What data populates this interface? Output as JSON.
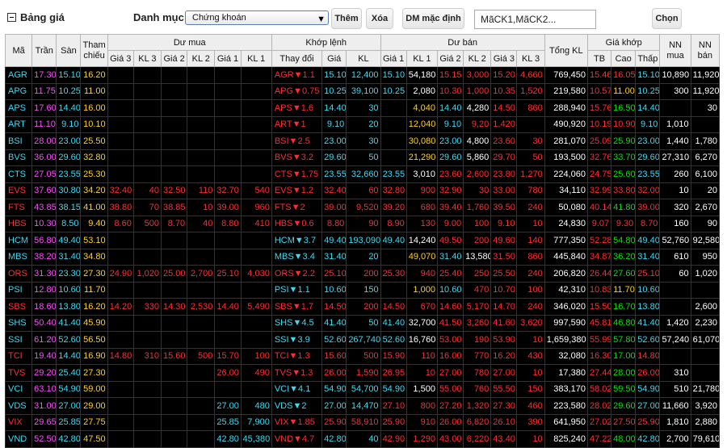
{
  "header": {
    "title": "Bảng giá",
    "category_label": "Danh mục",
    "category_value": "Chứng khoán",
    "add_label": "Thêm",
    "delete_label": "Xóa",
    "default_list_label": "DM mặc định",
    "codes_value": "MãCK1,MãCK2...",
    "choose_label": "Chọn"
  },
  "columns": {
    "code": "Mã",
    "ceiling": "Trần",
    "floor": "Sàn",
    "reference": "Tham chiếu",
    "buy_group": "Dư mua",
    "match_group": "Khớp lệnh",
    "sell_group": "Dư bán",
    "total_vol": "Tổng KL",
    "match_price_group": "Giá khớp",
    "foreign_buy": "NN mua",
    "foreign_sell": "NN bán",
    "price3": "Giá 3",
    "vol3": "KL 3",
    "price2": "Giá 2",
    "vol2": "KL 2",
    "price1": "Giá 1",
    "vol1": "KL 1",
    "change": "Thay đổi",
    "price": "Giá",
    "vol": "KL",
    "avg": "TB",
    "high": "Cao",
    "low": "Thấp"
  },
  "colors": {
    "up": "#00e600",
    "down": "#ff2d2d",
    "reference": "#ffd21f",
    "ceiling": "#ff4dff",
    "floor": "#3fd9f2",
    "neutral": "#ffffff",
    "background": "#000000"
  },
  "rows": [
    [
      "AGR",
      "17.30",
      "15.10",
      "16.20",
      "",
      "",
      "",
      "",
      "",
      "",
      "AGR▼1.1",
      "15.10",
      "12,400",
      "15.10",
      "54,180",
      "15.15",
      "3,000",
      "15.20",
      "4,660",
      "769,450",
      "15.46",
      "16.05",
      "15.10",
      "10,890",
      "11,920"
    ],
    [
      "APG",
      "11.75",
      "10.25",
      "11.00",
      "",
      "",
      "",
      "",
      "",
      "",
      "APG▼0.75",
      "10.25",
      "39,100",
      "10.25",
      "2,080",
      "10.30",
      "1,000",
      "10.35",
      "1,520",
      "219,580",
      "10.57",
      "11.00",
      "10.25",
      "300",
      "11,920"
    ],
    [
      "APS",
      "17.60",
      "14.40",
      "16.00",
      "",
      "",
      "",
      "",
      "",
      "",
      "APS▼1.6",
      "14.40",
      "30",
      "",
      "4,040",
      "14.40",
      "4,280",
      "14.50",
      "860",
      "288,940",
      "15.76",
      "16.50",
      "14.40",
      "",
      "30"
    ],
    [
      "ART",
      "11.10",
      "9.10",
      "10.10",
      "",
      "",
      "",
      "",
      "",
      "",
      "ART▼1",
      "9.10",
      "20",
      "",
      "12,040",
      "9.10",
      "9,20",
      "1,420",
      "",
      "490,920",
      "10.19",
      "10.90",
      "9.10",
      "1,010",
      ""
    ],
    [
      "BSI",
      "28.00",
      "23.00",
      "25.50",
      "",
      "",
      "",
      "",
      "",
      "",
      "BSI▼2.5",
      "23.00",
      "30",
      "",
      "30,080",
      "23.00",
      "4,800",
      "23.60",
      "30",
      "281,070",
      "25.09",
      "25.90",
      "23.00",
      "1,440",
      "1,780"
    ],
    [
      "BVS",
      "36.00",
      "29.60",
      "32.80",
      "",
      "",
      "",
      "",
      "",
      "",
      "BVS▼3.2",
      "29.60",
      "50",
      "",
      "21,290",
      "29.60",
      "5,860",
      "29.70",
      "50",
      "193,500",
      "32.76",
      "33.70",
      "29.60",
      "27,310",
      "6,270"
    ],
    [
      "CTS",
      "27.05",
      "23.55",
      "25.30",
      "",
      "",
      "",
      "",
      "",
      "",
      "CTS▼1.75",
      "23.55",
      "32,660",
      "23.55",
      "3,010",
      "23.60",
      "2,600",
      "23.80",
      "1,270",
      "224,060",
      "24.75",
      "25.60",
      "23.55",
      "260",
      "6,100"
    ],
    [
      "EVS",
      "37.60",
      "30.80",
      "34.20",
      "32.40",
      "40",
      "32.50",
      "110",
      "32.70",
      "540",
      "EVS▼1.2",
      "32.40",
      "60",
      "32.80",
      "900",
      "32.90",
      "30",
      "33.00",
      "780",
      "34,110",
      "32.99",
      "33.80",
      "32.00",
      "10",
      "20"
    ],
    [
      "FTS",
      "43.85",
      "38.15",
      "41.00",
      "38.80",
      "70",
      "38.85",
      "10",
      "39.00",
      "960",
      "FTS▼2",
      "39.00",
      "9,520",
      "39.20",
      "680",
      "39.40",
      "1,760",
      "39.50",
      "240",
      "50,080",
      "40.14",
      "41.80",
      "39.00",
      "320",
      "2,670"
    ],
    [
      "HBS",
      "10.30",
      "8.50",
      "9.40",
      "8.60",
      "500",
      "8.70",
      "40",
      "8.80",
      "410",
      "HBS▼0.6",
      "8.80",
      "90",
      "8.90",
      "130",
      "9.00",
      "100",
      "9.10",
      "10",
      "24,830",
      "9.07",
      "9.30",
      "8.70",
      "160",
      "90"
    ],
    [
      "HCM",
      "56.80",
      "49.40",
      "53.10",
      "",
      "",
      "",
      "",
      "",
      "",
      "HCM▼3.7",
      "49.40",
      "193,090",
      "49.40",
      "14,240",
      "49.50",
      "200",
      "49.60",
      "140",
      "777,350",
      "52.28",
      "54.80",
      "49.40",
      "52,760",
      "92,580"
    ],
    [
      "MBS",
      "38.20",
      "31.40",
      "34.80",
      "",
      "",
      "",
      "",
      "",
      "",
      "MBS▼3.4",
      "31.40",
      "20",
      "",
      "49,070",
      "31.40",
      "13,580",
      "31.50",
      "860",
      "445,840",
      "34.87",
      "36.20",
      "31.40",
      "610",
      "950"
    ],
    [
      "ORS",
      "31.30",
      "23.30",
      "27.30",
      "24.90",
      "1,020",
      "25.00",
      "2,700",
      "25.10",
      "4,030",
      "ORS▼2.2",
      "25.10",
      "200",
      "25.30",
      "940",
      "25.40",
      "250",
      "25.50",
      "240",
      "206,820",
      "26.44",
      "27.60",
      "25.10",
      "60",
      "1,020"
    ],
    [
      "PSI",
      "12.80",
      "10.60",
      "11.70",
      "",
      "",
      "",
      "",
      "",
      "",
      "PSI▼1.1",
      "10.60",
      "150",
      "",
      "1,000",
      "10.60",
      "470",
      "10.70",
      "100",
      "42,310",
      "10.83",
      "11.70",
      "10.60",
      "",
      ""
    ],
    [
      "SBS",
      "18.60",
      "13.80",
      "16.20",
      "14.20",
      "330",
      "14.30",
      "2,530",
      "14.40",
      "5,490",
      "SBS▼1.7",
      "14.50",
      "200",
      "14.50",
      "670",
      "14.60",
      "5,170",
      "14.70",
      "240",
      "346,020",
      "15.50",
      "16.70",
      "13.80",
      "",
      "2,600"
    ],
    [
      "SHS",
      "50.40",
      "41.40",
      "45.90",
      "",
      "",
      "",
      "",
      "",
      "",
      "SHS▼4.5",
      "41.40",
      "50",
      "41.40",
      "32,700",
      "41.50",
      "3,260",
      "41.60",
      "3,620",
      "997,590",
      "45.81",
      "46.80",
      "41.40",
      "1,420",
      "2,230"
    ],
    [
      "SSI",
      "61.20",
      "52.60",
      "56.50",
      "",
      "",
      "",
      "",
      "",
      "",
      "SSI▼3.9",
      "52.60",
      "267,740",
      "52.60",
      "16,760",
      "53.00",
      "190",
      "53.90",
      "10",
      "1,659,380",
      "55.99",
      "57.80",
      "52.60",
      "57,240",
      "61,070"
    ],
    [
      "TCI",
      "19.40",
      "14.40",
      "16.90",
      "14.80",
      "310",
      "15.60",
      "500",
      "15.70",
      "100",
      "TCI▼1.3",
      "15.60",
      "500",
      "15.90",
      "110",
      "16.00",
      "770",
      "16.20",
      "430",
      "32,080",
      "16.30",
      "17.00",
      "14.80",
      "",
      ""
    ],
    [
      "TVS",
      "29.20",
      "25.40",
      "27.30",
      "",
      "",
      "",
      "",
      "26.00",
      "490",
      "TVS▼1.3",
      "26.00",
      "1,590",
      "26.95",
      "10",
      "27.00",
      "780",
      "27.00",
      "10",
      "17,380",
      "27.44",
      "28.00",
      "26.00",
      "310",
      ""
    ],
    [
      "VCI",
      "63.10",
      "54.90",
      "59.00",
      "",
      "",
      "",
      "",
      "",
      "",
      "VCI▼4.1",
      "54.90",
      "54,700",
      "54.90",
      "1,500",
      "55.00",
      "760",
      "55.50",
      "150",
      "383,170",
      "58.02",
      "59.50",
      "54.90",
      "510",
      "21,780"
    ],
    [
      "VDS",
      "31.00",
      "27.00",
      "29.00",
      "",
      "",
      "",
      "",
      "27.00",
      "480",
      "VDS▼2",
      "27.00",
      "14,470",
      "27.10",
      "800",
      "27.20",
      "1,320",
      "27.30",
      "460",
      "223,580",
      "28.02",
      "29.60",
      "27.00",
      "11,660",
      "3,920"
    ],
    [
      "VIX",
      "29.65",
      "25.85",
      "27.75",
      "",
      "",
      "",
      "",
      "25.85",
      "7,900",
      "VIX▼1.85",
      "25.90",
      "58,910",
      "25.90",
      "910",
      "26.00",
      "6,820",
      "26.10",
      "390",
      "641,950",
      "27.02",
      "27.50",
      "25.90",
      "1,810",
      "2,880"
    ],
    [
      "VND",
      "52.50",
      "42.80",
      "47.50",
      "",
      "",
      "",
      "",
      "42.80",
      "45,380",
      "VND▼4.7",
      "42.80",
      "40",
      "42.90",
      "1,290",
      "43.00",
      "6,220",
      "43.40",
      "10",
      "825,240",
      "47.22",
      "48.00",
      "42.80",
      "2,700",
      "79,610"
    ]
  ],
  "row_colors": [
    [
      "f",
      "c",
      "f",
      "r",
      "w",
      "w",
      "w",
      "w",
      "w",
      "w",
      "d",
      "f",
      "f",
      "f",
      "w",
      "d",
      "d",
      "d",
      "d",
      "w",
      "d",
      "d",
      "f",
      "w",
      "w"
    ],
    [
      "f",
      "c",
      "f",
      "r",
      "w",
      "w",
      "w",
      "w",
      "w",
      "w",
      "d",
      "f",
      "f",
      "f",
      "w",
      "d",
      "d",
      "d",
      "d",
      "w",
      "d",
      "r",
      "f",
      "w",
      "w"
    ],
    [
      "f",
      "c",
      "f",
      "r",
      "w",
      "w",
      "w",
      "w",
      "w",
      "w",
      "d",
      "f",
      "f",
      "f",
      "r",
      "f",
      "w",
      "d",
      "d",
      "w",
      "d",
      "u",
      "f",
      "w",
      "w"
    ],
    [
      "f",
      "c",
      "f",
      "r",
      "w",
      "w",
      "w",
      "w",
      "w",
      "w",
      "d",
      "f",
      "f",
      "f",
      "r",
      "f",
      "d",
      "d",
      "w",
      "w",
      "d",
      "d",
      "f",
      "w",
      "w"
    ],
    [
      "f",
      "c",
      "f",
      "r",
      "w",
      "w",
      "w",
      "w",
      "w",
      "w",
      "d",
      "f",
      "f",
      "f",
      "r",
      "f",
      "w",
      "d",
      "d",
      "w",
      "d",
      "u",
      "f",
      "w",
      "w"
    ],
    [
      "f",
      "c",
      "f",
      "r",
      "w",
      "w",
      "w",
      "w",
      "w",
      "w",
      "d",
      "f",
      "f",
      "f",
      "r",
      "f",
      "w",
      "d",
      "d",
      "w",
      "d",
      "u",
      "f",
      "w",
      "w"
    ],
    [
      "f",
      "c",
      "f",
      "r",
      "w",
      "w",
      "w",
      "w",
      "w",
      "w",
      "d",
      "f",
      "f",
      "f",
      "w",
      "d",
      "d",
      "d",
      "d",
      "w",
      "d",
      "u",
      "f",
      "w",
      "w"
    ],
    [
      "d",
      "c",
      "f",
      "r",
      "d",
      "d",
      "d",
      "d",
      "d",
      "d",
      "d",
      "d",
      "d",
      "d",
      "d",
      "d",
      "d",
      "d",
      "d",
      "w",
      "d",
      "d",
      "d",
      "w",
      "w"
    ],
    [
      "d",
      "c",
      "f",
      "r",
      "d",
      "d",
      "d",
      "d",
      "d",
      "d",
      "d",
      "d",
      "d",
      "d",
      "d",
      "d",
      "d",
      "d",
      "d",
      "w",
      "d",
      "u",
      "d",
      "w",
      "w"
    ],
    [
      "d",
      "c",
      "f",
      "r",
      "d",
      "d",
      "d",
      "d",
      "d",
      "d",
      "d",
      "d",
      "d",
      "d",
      "d",
      "d",
      "d",
      "d",
      "d",
      "w",
      "d",
      "d",
      "d",
      "w",
      "w"
    ],
    [
      "f",
      "c",
      "f",
      "r",
      "w",
      "w",
      "w",
      "w",
      "w",
      "w",
      "f",
      "f",
      "f",
      "f",
      "w",
      "d",
      "d",
      "d",
      "d",
      "w",
      "d",
      "u",
      "f",
      "w",
      "w"
    ],
    [
      "f",
      "c",
      "f",
      "r",
      "w",
      "w",
      "w",
      "w",
      "w",
      "w",
      "f",
      "f",
      "f",
      "f",
      "r",
      "f",
      "w",
      "d",
      "d",
      "w",
      "d",
      "u",
      "f",
      "w",
      "w"
    ],
    [
      "d",
      "c",
      "f",
      "r",
      "d",
      "d",
      "d",
      "d",
      "d",
      "d",
      "d",
      "d",
      "d",
      "d",
      "d",
      "d",
      "d",
      "d",
      "d",
      "w",
      "d",
      "u",
      "d",
      "w",
      "w"
    ],
    [
      "f",
      "c",
      "f",
      "r",
      "w",
      "w",
      "w",
      "w",
      "w",
      "w",
      "f",
      "f",
      "f",
      "f",
      "r",
      "f",
      "d",
      "d",
      "d",
      "w",
      "d",
      "r",
      "f",
      "w",
      "w"
    ],
    [
      "d",
      "c",
      "f",
      "r",
      "d",
      "d",
      "d",
      "d",
      "d",
      "d",
      "d",
      "d",
      "d",
      "d",
      "d",
      "d",
      "d",
      "d",
      "d",
      "w",
      "d",
      "u",
      "f",
      "w",
      "w"
    ],
    [
      "f",
      "c",
      "f",
      "r",
      "w",
      "w",
      "w",
      "w",
      "w",
      "w",
      "f",
      "f",
      "f",
      "f",
      "w",
      "d",
      "d",
      "d",
      "d",
      "w",
      "d",
      "u",
      "f",
      "w",
      "w"
    ],
    [
      "f",
      "c",
      "f",
      "r",
      "w",
      "w",
      "w",
      "w",
      "w",
      "w",
      "f",
      "f",
      "f",
      "f",
      "w",
      "d",
      "d",
      "d",
      "d",
      "w",
      "d",
      "u",
      "f",
      "w",
      "w"
    ],
    [
      "d",
      "c",
      "f",
      "r",
      "d",
      "d",
      "d",
      "d",
      "d",
      "d",
      "d",
      "d",
      "d",
      "d",
      "d",
      "d",
      "d",
      "d",
      "d",
      "w",
      "d",
      "u",
      "d",
      "w",
      "w"
    ],
    [
      "d",
      "c",
      "f",
      "r",
      "w",
      "w",
      "w",
      "w",
      "d",
      "d",
      "d",
      "d",
      "d",
      "d",
      "d",
      "d",
      "d",
      "d",
      "d",
      "w",
      "d",
      "u",
      "d",
      "w",
      "w"
    ],
    [
      "f",
      "c",
      "f",
      "r",
      "w",
      "w",
      "w",
      "w",
      "w",
      "w",
      "f",
      "f",
      "f",
      "f",
      "w",
      "d",
      "d",
      "d",
      "d",
      "w",
      "d",
      "u",
      "f",
      "w",
      "w"
    ],
    [
      "f",
      "c",
      "f",
      "r",
      "w",
      "w",
      "w",
      "w",
      "f",
      "f",
      "f",
      "f",
      "f",
      "d",
      "d",
      "d",
      "d",
      "d",
      "d",
      "w",
      "d",
      "u",
      "f",
      "w",
      "w"
    ],
    [
      "d",
      "c",
      "f",
      "r",
      "w",
      "w",
      "w",
      "w",
      "f",
      "f",
      "d",
      "d",
      "d",
      "d",
      "d",
      "d",
      "d",
      "d",
      "d",
      "w",
      "d",
      "d",
      "d",
      "w",
      "w"
    ],
    [
      "f",
      "c",
      "f",
      "r",
      "w",
      "w",
      "w",
      "w",
      "f",
      "f",
      "d",
      "f",
      "f",
      "d",
      "d",
      "d",
      "d",
      "d",
      "d",
      "w",
      "d",
      "u",
      "f",
      "w",
      "w"
    ]
  ]
}
